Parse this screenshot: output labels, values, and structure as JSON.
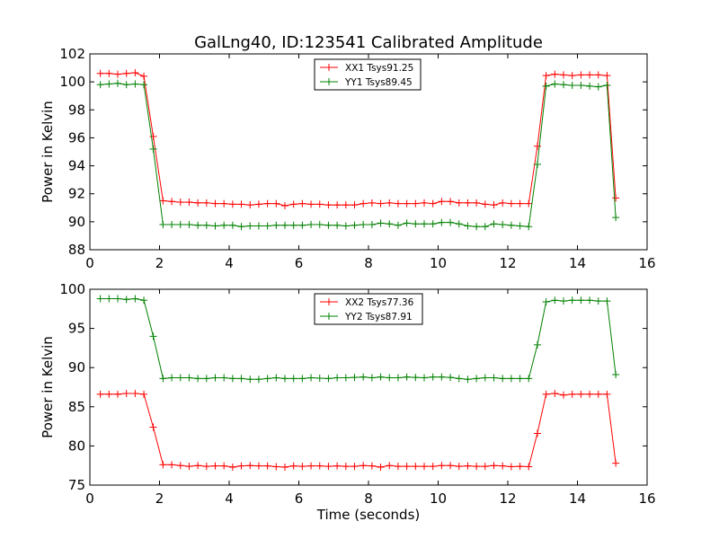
{
  "title": "GalLng40, ID:123541 Calibrated Amplitude",
  "chart_data": [
    {
      "type": "line",
      "xlabel": "",
      "ylabel": "Power in Kelvin",
      "xlim": [
        0,
        16
      ],
      "ylim": [
        88,
        102
      ],
      "xticks": [
        "0",
        "2",
        "4",
        "6",
        "8",
        "10",
        "12",
        "14",
        "16"
      ],
      "yticks": [
        "88",
        "90",
        "92",
        "94",
        "96",
        "98",
        "100",
        "102"
      ],
      "grid": false,
      "legend": "top-center",
      "x": [
        0.3,
        0.55,
        0.8,
        1.05,
        1.3,
        1.55,
        1.82,
        2.1,
        2.35,
        2.6,
        2.85,
        3.1,
        3.35,
        3.6,
        3.85,
        4.1,
        4.35,
        4.6,
        4.85,
        5.1,
        5.35,
        5.6,
        5.85,
        6.1,
        6.35,
        6.6,
        6.85,
        7.1,
        7.35,
        7.6,
        7.85,
        8.1,
        8.35,
        8.6,
        8.85,
        9.1,
        9.35,
        9.6,
        9.85,
        10.1,
        10.35,
        10.6,
        10.85,
        11.1,
        11.35,
        11.6,
        11.85,
        12.1,
        12.35,
        12.6,
        12.85,
        13.1,
        13.35,
        13.6,
        13.85,
        14.1,
        14.35,
        14.6,
        14.85,
        15.1
      ],
      "series": [
        {
          "name": "XX1 Tsys91.25",
          "color": "#ff0000",
          "values": [
            100.6,
            100.6,
            100.55,
            100.6,
            100.65,
            100.4,
            96.1,
            91.5,
            91.45,
            91.4,
            91.4,
            91.35,
            91.35,
            91.3,
            91.3,
            91.25,
            91.25,
            91.2,
            91.25,
            91.3,
            91.3,
            91.15,
            91.25,
            91.3,
            91.25,
            91.25,
            91.2,
            91.2,
            91.2,
            91.2,
            91.3,
            91.35,
            91.3,
            91.35,
            91.3,
            91.3,
            91.3,
            91.35,
            91.3,
            91.45,
            91.45,
            91.35,
            91.35,
            91.35,
            91.25,
            91.2,
            91.35,
            91.3,
            91.3,
            91.3,
            95.4,
            100.45,
            100.55,
            100.5,
            100.45,
            100.5,
            100.5,
            100.5,
            100.45,
            91.7
          ]
        },
        {
          "name": "YY1 Tsys89.45",
          "color": "#008000",
          "values": [
            99.8,
            99.85,
            99.9,
            99.8,
            99.85,
            99.8,
            95.2,
            89.8,
            89.8,
            89.8,
            89.8,
            89.75,
            89.75,
            89.7,
            89.75,
            89.75,
            89.65,
            89.7,
            89.7,
            89.7,
            89.75,
            89.75,
            89.75,
            89.75,
            89.8,
            89.8,
            89.75,
            89.75,
            89.7,
            89.75,
            89.8,
            89.8,
            89.9,
            89.85,
            89.75,
            89.9,
            89.85,
            89.85,
            89.85,
            89.95,
            89.95,
            89.85,
            89.7,
            89.65,
            89.65,
            89.85,
            89.8,
            89.75,
            89.7,
            89.65,
            94.1,
            99.7,
            99.85,
            99.8,
            99.75,
            99.75,
            99.7,
            99.65,
            99.75,
            90.3
          ]
        }
      ]
    },
    {
      "type": "line",
      "xlabel": "Time (seconds)",
      "ylabel": "Power in Kelvin",
      "xlim": [
        0,
        16
      ],
      "ylim": [
        75,
        100
      ],
      "xticks": [
        "0",
        "2",
        "4",
        "6",
        "8",
        "10",
        "12",
        "14",
        "16"
      ],
      "yticks": [
        "75",
        "80",
        "85",
        "90",
        "95",
        "100"
      ],
      "grid": false,
      "legend": "top-center",
      "x": [
        0.3,
        0.55,
        0.8,
        1.05,
        1.3,
        1.55,
        1.82,
        2.1,
        2.35,
        2.6,
        2.85,
        3.1,
        3.35,
        3.6,
        3.85,
        4.1,
        4.35,
        4.6,
        4.85,
        5.1,
        5.35,
        5.6,
        5.85,
        6.1,
        6.35,
        6.6,
        6.85,
        7.1,
        7.35,
        7.6,
        7.85,
        8.1,
        8.35,
        8.6,
        8.85,
        9.1,
        9.35,
        9.6,
        9.85,
        10.1,
        10.35,
        10.6,
        10.85,
        11.1,
        11.35,
        11.6,
        11.85,
        12.1,
        12.35,
        12.6,
        12.85,
        13.1,
        13.35,
        13.6,
        13.85,
        14.1,
        14.35,
        14.6,
        14.85,
        15.1
      ],
      "series": [
        {
          "name": "XX2 Tsys77.36",
          "color": "#ff0000",
          "values": [
            86.6,
            86.6,
            86.6,
            86.7,
            86.7,
            86.6,
            82.4,
            77.6,
            77.6,
            77.5,
            77.4,
            77.5,
            77.4,
            77.45,
            77.45,
            77.3,
            77.45,
            77.5,
            77.45,
            77.45,
            77.35,
            77.3,
            77.45,
            77.4,
            77.45,
            77.45,
            77.4,
            77.45,
            77.4,
            77.4,
            77.5,
            77.45,
            77.3,
            77.5,
            77.4,
            77.4,
            77.4,
            77.4,
            77.4,
            77.5,
            77.5,
            77.4,
            77.45,
            77.4,
            77.4,
            77.5,
            77.45,
            77.35,
            77.4,
            77.35,
            81.6,
            86.6,
            86.7,
            86.5,
            86.6,
            86.6,
            86.6,
            86.6,
            86.6,
            77.8
          ]
        },
        {
          "name": "YY2 Tsys87.91",
          "color": "#008000",
          "values": [
            98.8,
            98.8,
            98.8,
            98.7,
            98.8,
            98.6,
            94.0,
            88.6,
            88.7,
            88.7,
            88.7,
            88.6,
            88.6,
            88.7,
            88.7,
            88.6,
            88.6,
            88.5,
            88.5,
            88.6,
            88.7,
            88.6,
            88.6,
            88.6,
            88.7,
            88.65,
            88.6,
            88.7,
            88.7,
            88.75,
            88.8,
            88.7,
            88.8,
            88.7,
            88.7,
            88.8,
            88.75,
            88.7,
            88.8,
            88.8,
            88.75,
            88.6,
            88.5,
            88.6,
            88.7,
            88.7,
            88.6,
            88.6,
            88.6,
            88.6,
            92.9,
            98.4,
            98.6,
            98.5,
            98.6,
            98.6,
            98.6,
            98.5,
            98.5,
            89.1
          ]
        }
      ]
    }
  ]
}
